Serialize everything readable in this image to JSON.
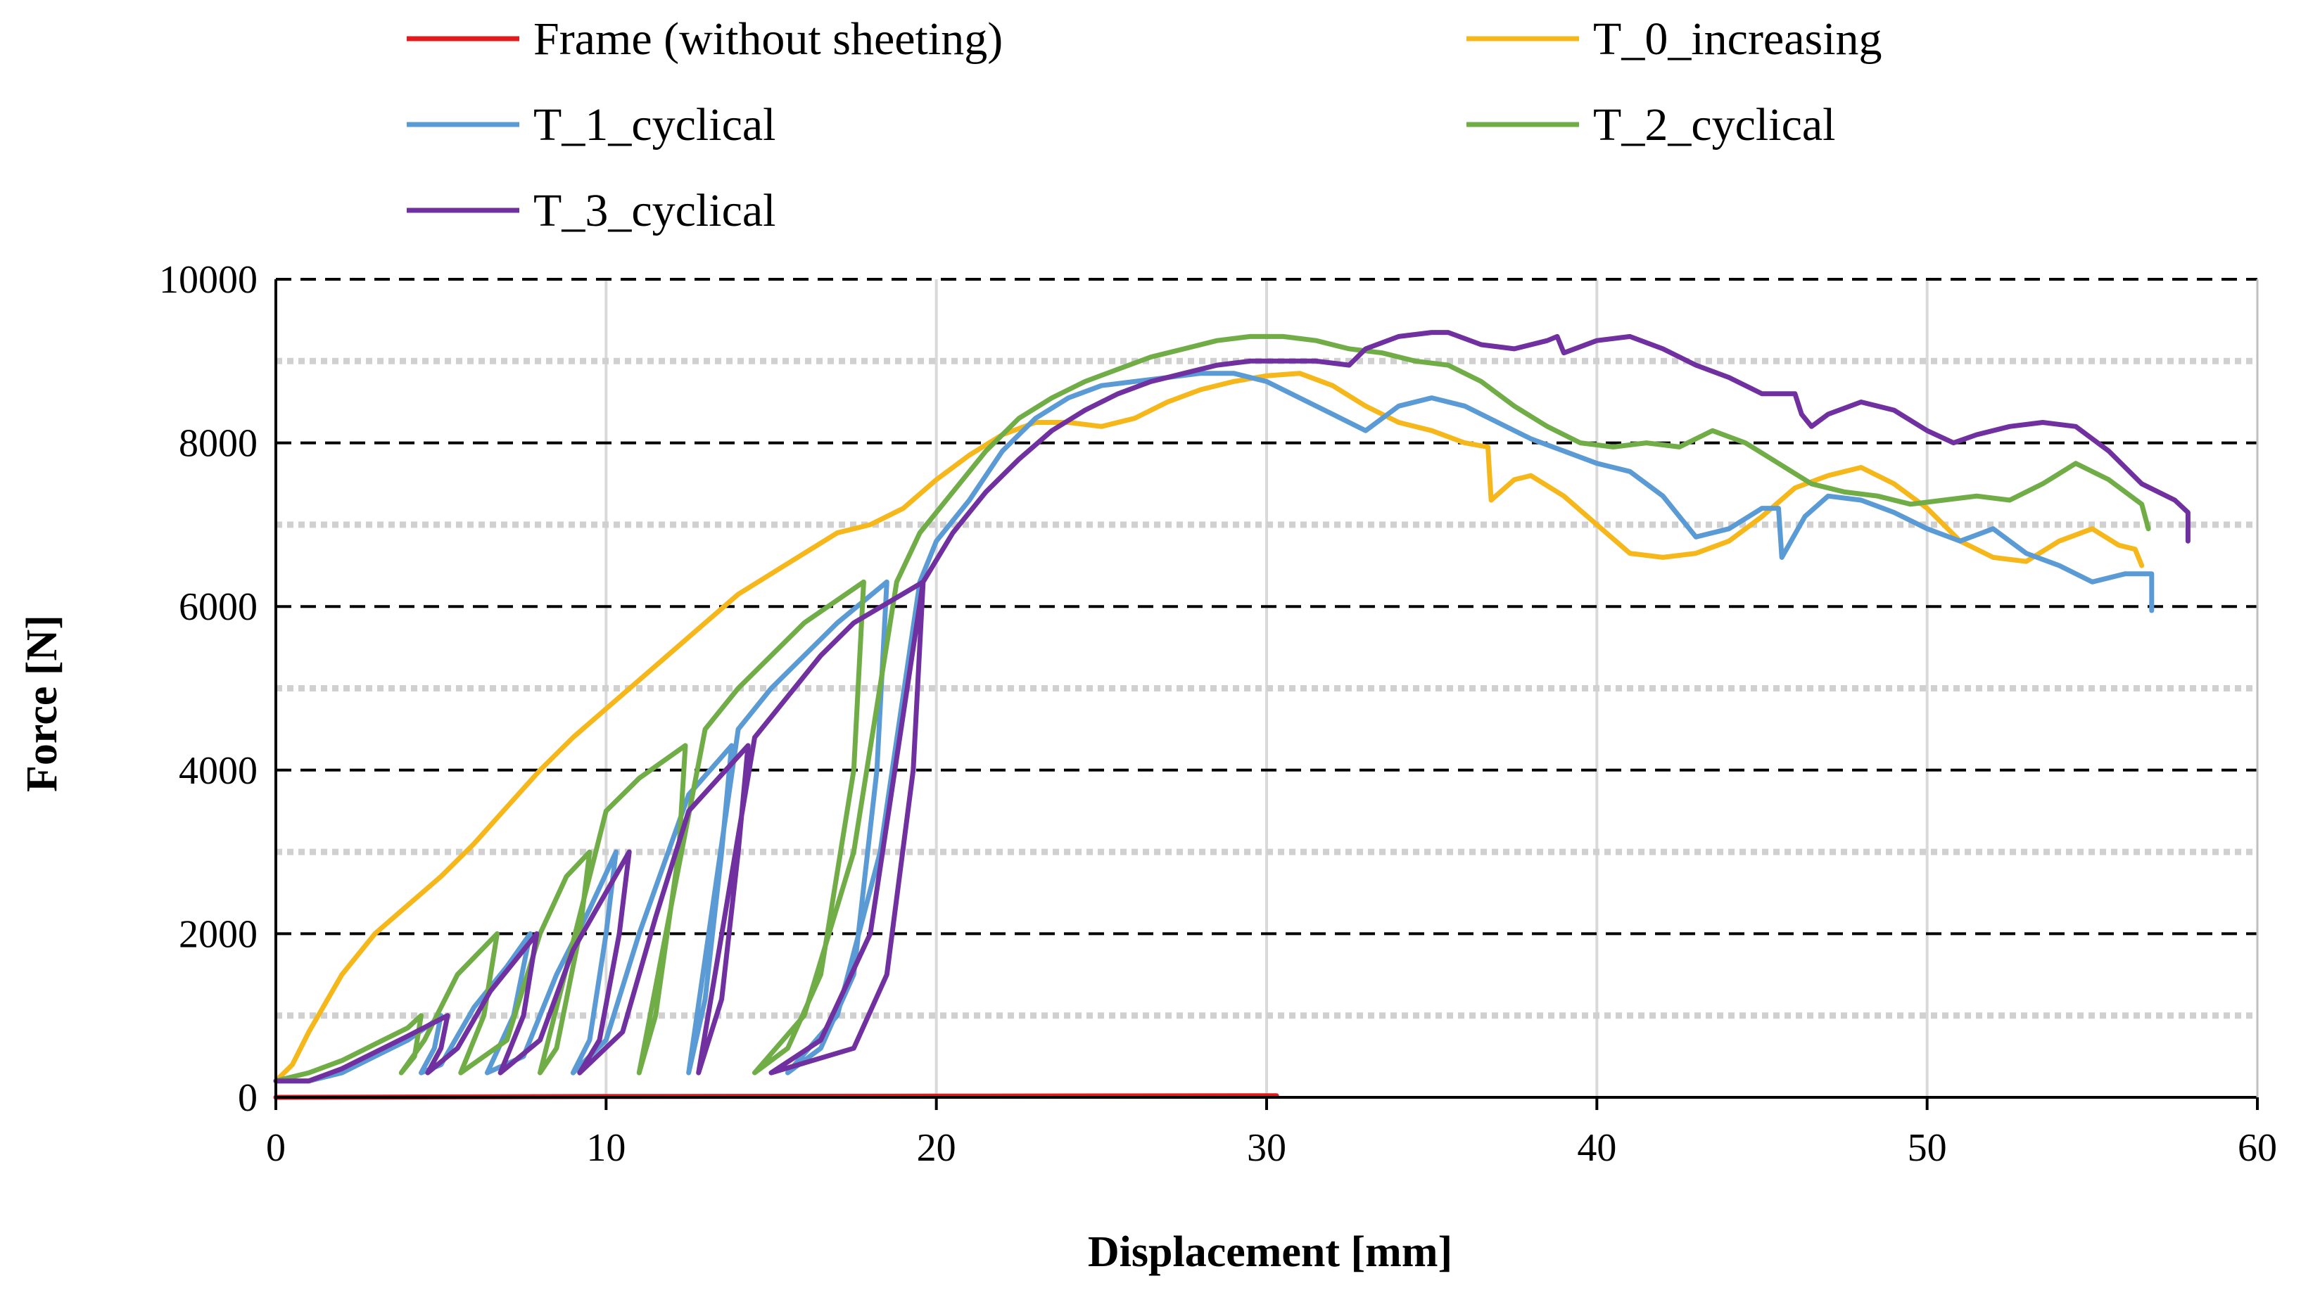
{
  "chart_data": {
    "type": "line",
    "title": "",
    "xlabel": "Displacement [mm]",
    "ylabel": "Force [N]",
    "xlim": [
      0,
      60
    ],
    "ylim": [
      0,
      10000
    ],
    "x_ticks": [
      0,
      10,
      20,
      30,
      40,
      50,
      60
    ],
    "y_ticks": [
      0,
      2000,
      4000,
      6000,
      8000,
      10000
    ],
    "x_tick_labels": [
      "0",
      "10",
      "20",
      "30",
      "40",
      "50",
      "60"
    ],
    "y_tick_labels": [
      "0",
      "2000",
      "4000",
      "6000",
      "8000",
      "10000"
    ],
    "major_gridlines_y": [
      2000,
      4000,
      6000,
      8000,
      10000
    ],
    "minor_gridlines_y": [
      1000,
      3000,
      5000,
      7000,
      9000
    ],
    "gridlines_x": [
      10,
      20,
      30,
      40,
      50
    ],
    "legend_position": "top",
    "series": [
      {
        "name": "Frame (without sheeting)",
        "color": "#e31a1c",
        "points": [
          [
            0,
            0
          ],
          [
            10,
            10
          ],
          [
            20,
            15
          ],
          [
            30.3,
            20
          ]
        ]
      },
      {
        "name": "T_0_increasing",
        "color": "#f5b71a",
        "points": [
          [
            0,
            200
          ],
          [
            0.5,
            400
          ],
          [
            1,
            800
          ],
          [
            2,
            1500
          ],
          [
            3,
            2000
          ],
          [
            4,
            2350
          ],
          [
            5,
            2700
          ],
          [
            6,
            3100
          ],
          [
            7,
            3550
          ],
          [
            8,
            4000
          ],
          [
            9,
            4400
          ],
          [
            10,
            4750
          ],
          [
            11,
            5100
          ],
          [
            12,
            5450
          ],
          [
            13,
            5800
          ],
          [
            14,
            6150
          ],
          [
            15,
            6400
          ],
          [
            16,
            6650
          ],
          [
            17,
            6900
          ],
          [
            18,
            7000
          ],
          [
            19,
            7200
          ],
          [
            20,
            7550
          ],
          [
            21,
            7850
          ],
          [
            22,
            8100
          ],
          [
            23,
            8250
          ],
          [
            24,
            8250
          ],
          [
            25,
            8200
          ],
          [
            26,
            8300
          ],
          [
            27,
            8500
          ],
          [
            28,
            8650
          ],
          [
            29,
            8750
          ],
          [
            30,
            8820
          ],
          [
            31,
            8850
          ],
          [
            32,
            8700
          ],
          [
            33,
            8450
          ],
          [
            34,
            8250
          ],
          [
            35,
            8150
          ],
          [
            36,
            8000
          ],
          [
            36.7,
            7950
          ],
          [
            36.8,
            7300
          ],
          [
            37.5,
            7550
          ],
          [
            38,
            7600
          ],
          [
            39,
            7350
          ],
          [
            40,
            7000
          ],
          [
            41,
            6650
          ],
          [
            42,
            6600
          ],
          [
            43,
            6650
          ],
          [
            44,
            6800
          ],
          [
            45,
            7100
          ],
          [
            46,
            7450
          ],
          [
            47,
            7600
          ],
          [
            48,
            7700
          ],
          [
            49,
            7500
          ],
          [
            50,
            7200
          ],
          [
            51,
            6800
          ],
          [
            52,
            6600
          ],
          [
            53,
            6550
          ],
          [
            54,
            6800
          ],
          [
            55,
            6950
          ],
          [
            55.8,
            6750
          ],
          [
            56.3,
            6700
          ],
          [
            56.5,
            6500
          ]
        ]
      },
      {
        "name": "T_1_cyclical",
        "color": "#5b9bd5",
        "points": [
          [
            0,
            200
          ],
          [
            1,
            200
          ],
          [
            2,
            300
          ],
          [
            3,
            500
          ],
          [
            4,
            700
          ],
          [
            4.7,
            900
          ],
          [
            5,
            1000
          ],
          [
            4.8,
            600
          ],
          [
            4.4,
            300
          ],
          [
            5,
            400
          ],
          [
            6,
            1100
          ],
          [
            7,
            1600
          ],
          [
            7.7,
            2000
          ],
          [
            7.2,
            1000
          ],
          [
            6.4,
            300
          ],
          [
            7.5,
            500
          ],
          [
            8.5,
            1500
          ],
          [
            9.5,
            2300
          ],
          [
            10.3,
            3000
          ],
          [
            10,
            2000
          ],
          [
            9.5,
            700
          ],
          [
            9,
            300
          ],
          [
            10,
            700
          ],
          [
            11,
            2000
          ],
          [
            12.5,
            3700
          ],
          [
            13.8,
            4300
          ],
          [
            13.5,
            3000
          ],
          [
            13,
            1200
          ],
          [
            12.5,
            300
          ],
          [
            14,
            4500
          ],
          [
            15,
            5000
          ],
          [
            16,
            5400
          ],
          [
            17,
            5800
          ],
          [
            18.5,
            6300
          ],
          [
            18.2,
            4000
          ],
          [
            17.5,
            1500
          ],
          [
            16.5,
            600
          ],
          [
            15.5,
            300
          ],
          [
            17,
            1000
          ],
          [
            18.3,
            3000
          ],
          [
            19.5,
            6300
          ],
          [
            20,
            6800
          ],
          [
            21,
            7300
          ],
          [
            22,
            7900
          ],
          [
            23,
            8300
          ],
          [
            24,
            8550
          ],
          [
            25,
            8700
          ],
          [
            26,
            8750
          ],
          [
            27,
            8800
          ],
          [
            28,
            8850
          ],
          [
            29,
            8850
          ],
          [
            30,
            8750
          ],
          [
            31,
            8550
          ],
          [
            32,
            8350
          ],
          [
            33,
            8150
          ],
          [
            34,
            8450
          ],
          [
            35,
            8550
          ],
          [
            36,
            8450
          ],
          [
            37,
            8250
          ],
          [
            38,
            8050
          ],
          [
            39,
            7900
          ],
          [
            40,
            7750
          ],
          [
            41,
            7650
          ],
          [
            42,
            7350
          ],
          [
            43,
            6850
          ],
          [
            44,
            6950
          ],
          [
            45,
            7200
          ],
          [
            45.5,
            7200
          ],
          [
            45.6,
            6600
          ],
          [
            46.3,
            7100
          ],
          [
            47,
            7350
          ],
          [
            48,
            7300
          ],
          [
            49,
            7150
          ],
          [
            50,
            6950
          ],
          [
            51,
            6800
          ],
          [
            52,
            6950
          ],
          [
            53,
            6650
          ],
          [
            54,
            6500
          ],
          [
            55,
            6300
          ],
          [
            56,
            6400
          ],
          [
            56.8,
            6400
          ],
          [
            56.8,
            5950
          ]
        ]
      },
      {
        "name": "T_2_cyclical",
        "color": "#70ad47",
        "points": [
          [
            0,
            200
          ],
          [
            1,
            300
          ],
          [
            2,
            450
          ],
          [
            3,
            650
          ],
          [
            4,
            850
          ],
          [
            4.4,
            1000
          ],
          [
            4.2,
            500
          ],
          [
            3.8,
            300
          ],
          [
            4.5,
            700
          ],
          [
            5.5,
            1500
          ],
          [
            6.7,
            2000
          ],
          [
            6.3,
            1000
          ],
          [
            5.6,
            300
          ],
          [
            7,
            700
          ],
          [
            8,
            2000
          ],
          [
            8.8,
            2700
          ],
          [
            9.5,
            3000
          ],
          [
            9.2,
            2000
          ],
          [
            8.5,
            600
          ],
          [
            8,
            300
          ],
          [
            10,
            3500
          ],
          [
            11,
            3900
          ],
          [
            12.4,
            4300
          ],
          [
            12.2,
            3000
          ],
          [
            11.5,
            1000
          ],
          [
            11,
            300
          ],
          [
            13,
            4500
          ],
          [
            14,
            5000
          ],
          [
            15,
            5400
          ],
          [
            16,
            5800
          ],
          [
            17.8,
            6300
          ],
          [
            17.5,
            4000
          ],
          [
            16.5,
            1500
          ],
          [
            15.5,
            600
          ],
          [
            14.5,
            300
          ],
          [
            16,
            1000
          ],
          [
            17.5,
            3000
          ],
          [
            18.8,
            6300
          ],
          [
            19.5,
            6900
          ],
          [
            20.5,
            7400
          ],
          [
            21.5,
            7900
          ],
          [
            22.5,
            8300
          ],
          [
            23.5,
            8550
          ],
          [
            24.5,
            8750
          ],
          [
            25.5,
            8900
          ],
          [
            26.5,
            9050
          ],
          [
            27.5,
            9150
          ],
          [
            28.5,
            9250
          ],
          [
            29.5,
            9300
          ],
          [
            30.5,
            9300
          ],
          [
            31.5,
            9250
          ],
          [
            32.5,
            9150
          ],
          [
            33.5,
            9100
          ],
          [
            34.5,
            9000
          ],
          [
            35.5,
            8950
          ],
          [
            36.5,
            8750
          ],
          [
            37.5,
            8450
          ],
          [
            38.5,
            8200
          ],
          [
            39.5,
            8000
          ],
          [
            40.5,
            7950
          ],
          [
            41.5,
            8000
          ],
          [
            42.5,
            7950
          ],
          [
            43.5,
            8150
          ],
          [
            44.5,
            8000
          ],
          [
            45.5,
            7750
          ],
          [
            46.5,
            7500
          ],
          [
            47.5,
            7400
          ],
          [
            48.5,
            7350
          ],
          [
            49.5,
            7250
          ],
          [
            50.5,
            7300
          ],
          [
            51.5,
            7350
          ],
          [
            52.5,
            7300
          ],
          [
            53.5,
            7500
          ],
          [
            54.5,
            7750
          ],
          [
            55.5,
            7550
          ],
          [
            56.5,
            7250
          ],
          [
            56.7,
            6950
          ]
        ]
      },
      {
        "name": "T_3_cyclical",
        "color": "#7030a0",
        "points": [
          [
            0,
            200
          ],
          [
            1,
            200
          ],
          [
            2,
            350
          ],
          [
            3,
            550
          ],
          [
            4,
            750
          ],
          [
            5.2,
            1000
          ],
          [
            5,
            600
          ],
          [
            4.6,
            300
          ],
          [
            5.5,
            600
          ],
          [
            6.5,
            1300
          ],
          [
            7.9,
            2000
          ],
          [
            7.5,
            1000
          ],
          [
            6.8,
            300
          ],
          [
            8,
            700
          ],
          [
            9,
            1800
          ],
          [
            10.7,
            3000
          ],
          [
            10.4,
            2000
          ],
          [
            9.8,
            700
          ],
          [
            9.2,
            300
          ],
          [
            10.5,
            800
          ],
          [
            11.5,
            2200
          ],
          [
            12.5,
            3500
          ],
          [
            14.3,
            4300
          ],
          [
            14,
            3000
          ],
          [
            13.5,
            1200
          ],
          [
            12.8,
            300
          ],
          [
            14.5,
            4400
          ],
          [
            15.5,
            4900
          ],
          [
            16.5,
            5400
          ],
          [
            17.5,
            5800
          ],
          [
            19.6,
            6300
          ],
          [
            19.3,
            4000
          ],
          [
            18.5,
            1500
          ],
          [
            17.5,
            600
          ],
          [
            15,
            300
          ],
          [
            16.5,
            700
          ],
          [
            18,
            2000
          ],
          [
            19.6,
            6300
          ],
          [
            20.5,
            6900
          ],
          [
            21.5,
            7400
          ],
          [
            22.5,
            7800
          ],
          [
            23.5,
            8150
          ],
          [
            24.5,
            8400
          ],
          [
            25.5,
            8600
          ],
          [
            26.5,
            8750
          ],
          [
            27.5,
            8850
          ],
          [
            28.5,
            8950
          ],
          [
            29.5,
            9000
          ],
          [
            30.5,
            9000
          ],
          [
            31.5,
            9000
          ],
          [
            32.5,
            8950
          ],
          [
            33,
            9150
          ],
          [
            34,
            9300
          ],
          [
            35,
            9350
          ],
          [
            35.5,
            9350
          ],
          [
            36.5,
            9200
          ],
          [
            37.5,
            9150
          ],
          [
            38.5,
            9250
          ],
          [
            38.8,
            9300
          ],
          [
            39,
            9100
          ],
          [
            40,
            9250
          ],
          [
            41,
            9300
          ],
          [
            42,
            9150
          ],
          [
            43,
            8950
          ],
          [
            44,
            8800
          ],
          [
            45,
            8600
          ],
          [
            46,
            8600
          ],
          [
            46.2,
            8350
          ],
          [
            46.5,
            8200
          ],
          [
            47,
            8350
          ],
          [
            48,
            8500
          ],
          [
            49,
            8400
          ],
          [
            50,
            8150
          ],
          [
            50.8,
            8000
          ],
          [
            51.5,
            8100
          ],
          [
            52.5,
            8200
          ],
          [
            53.5,
            8250
          ],
          [
            54.5,
            8200
          ],
          [
            55.5,
            7900
          ],
          [
            56.5,
            7500
          ],
          [
            57.5,
            7300
          ],
          [
            57.9,
            7150
          ],
          [
            57.9,
            6800
          ]
        ]
      }
    ]
  }
}
